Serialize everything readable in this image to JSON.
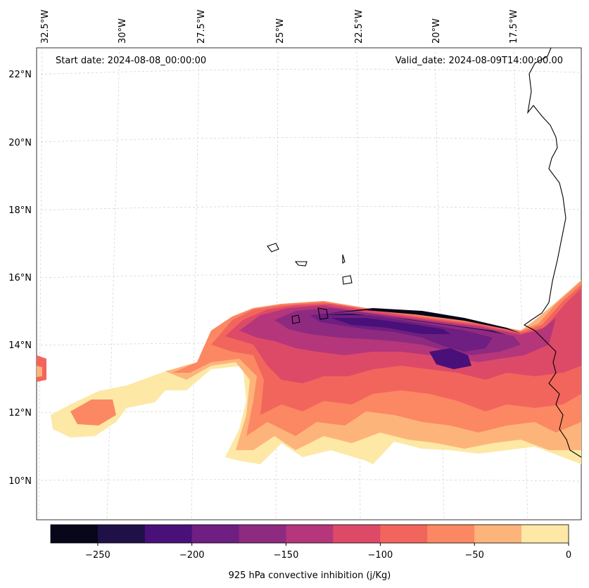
{
  "header": {
    "start_date": "Start date: 2024-08-08_00:00:00",
    "valid_date": "Valid_date: 2024-08-09T14:00:00.00"
  },
  "map": {
    "lon_labels": [
      "32.5°W",
      "30°W",
      "27.5°W",
      "25°W",
      "22.5°W",
      "20°W",
      "17.5°W"
    ],
    "lat_labels": [
      "22°N",
      "20°N",
      "18°N",
      "16°N",
      "14°N",
      "12°N",
      "10°N"
    ],
    "gridlines": "dashed-light-gray",
    "coastline_color": "#000000"
  },
  "colorbar": {
    "label": "925 hPa convective inhibition (j/Kg)",
    "ticks": [
      "−250",
      "−200",
      "−150",
      "−100",
      "−50",
      "0"
    ],
    "levels": [
      -275,
      -250,
      -225,
      -200,
      -175,
      -150,
      -125,
      -100,
      -75,
      -50,
      -25,
      0
    ],
    "colors": [
      "#07061a",
      "#1f1147",
      "#49107a",
      "#6f1e81",
      "#8f2a81",
      "#b5367a",
      "#dd4a68",
      "#f2655c",
      "#fb8862",
      "#fdb47b",
      "#fde8a5"
    ]
  }
}
